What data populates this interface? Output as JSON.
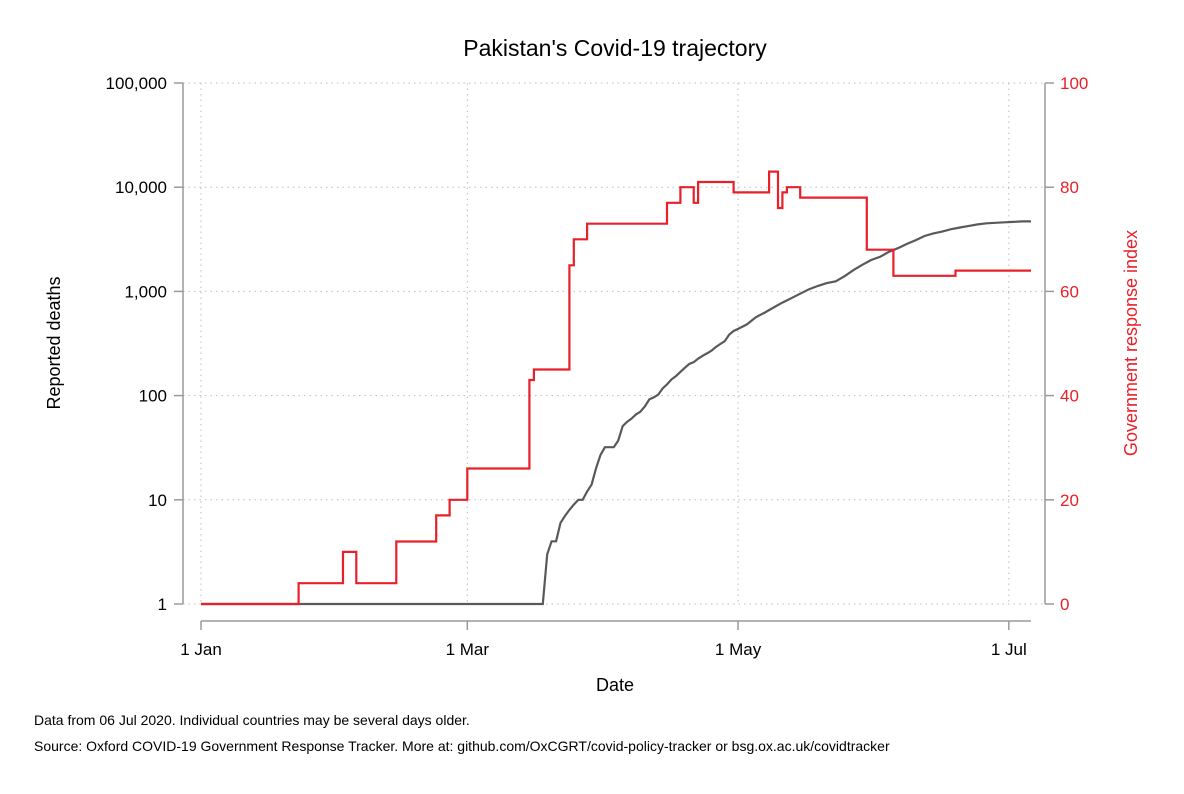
{
  "chart_data": {
    "type": "line",
    "title": "Pakistan's Covid-19 trajectory",
    "xlabel": "Date",
    "ylabel_left": "Reported deaths",
    "ylabel_right": "Government response index",
    "x_ticks": [
      "1 Jan",
      "1 Mar",
      "1 May",
      "1 Jul"
    ],
    "x_tick_dates": [
      "2020-01-01",
      "2020-03-01",
      "2020-05-01",
      "2020-07-01"
    ],
    "x_range": [
      "2020-01-01",
      "2020-07-06"
    ],
    "left_axis": {
      "scale": "log",
      "ylim": [
        1,
        100000
      ],
      "ticks": [
        1,
        10,
        100,
        1000,
        10000,
        100000
      ],
      "tick_labels": [
        "1",
        "10",
        "100",
        "1,000",
        "10,000",
        "100,000"
      ]
    },
    "right_axis": {
      "scale": "linear",
      "ylim": [
        0,
        100
      ],
      "ticks": [
        0,
        20,
        40,
        60,
        80,
        100
      ],
      "tick_labels": [
        "0",
        "20",
        "40",
        "60",
        "80",
        "100"
      ],
      "color": "#e8202a"
    },
    "grid": true,
    "series": [
      {
        "axis": "left",
        "color": "#595959",
        "x": [
          "2020-01-01",
          "2020-03-18",
          "2020-03-19",
          "2020-03-20",
          "2020-03-21",
          "2020-03-22",
          "2020-03-23",
          "2020-03-24",
          "2020-03-25",
          "2020-03-26",
          "2020-03-27",
          "2020-03-28",
          "2020-03-29",
          "2020-03-30",
          "2020-03-31",
          "2020-04-01",
          "2020-04-02",
          "2020-04-03",
          "2020-04-04",
          "2020-04-05",
          "2020-04-06",
          "2020-04-07",
          "2020-04-08",
          "2020-04-09",
          "2020-04-10",
          "2020-04-11",
          "2020-04-12",
          "2020-04-13",
          "2020-04-14",
          "2020-04-15",
          "2020-04-16",
          "2020-04-17",
          "2020-04-18",
          "2020-04-19",
          "2020-04-20",
          "2020-04-21",
          "2020-04-22",
          "2020-04-23",
          "2020-04-24",
          "2020-04-25",
          "2020-04-26",
          "2020-04-27",
          "2020-04-28",
          "2020-04-29",
          "2020-04-30",
          "2020-05-01",
          "2020-05-03",
          "2020-05-05",
          "2020-05-07",
          "2020-05-09",
          "2020-05-11",
          "2020-05-13",
          "2020-05-15",
          "2020-05-17",
          "2020-05-19",
          "2020-05-21",
          "2020-05-23",
          "2020-05-25",
          "2020-05-27",
          "2020-05-29",
          "2020-05-31",
          "2020-06-02",
          "2020-06-04",
          "2020-06-06",
          "2020-06-08",
          "2020-06-10",
          "2020-06-12",
          "2020-06-14",
          "2020-06-16",
          "2020-06-18",
          "2020-06-20",
          "2020-06-22",
          "2020-06-24",
          "2020-06-26",
          "2020-06-28",
          "2020-06-30",
          "2020-07-02",
          "2020-07-04",
          "2020-07-06"
        ],
        "y": [
          1,
          1,
          3,
          4,
          4,
          6,
          7,
          8,
          9,
          10,
          10,
          12,
          14,
          20,
          27,
          32,
          32,
          32,
          37,
          51,
          56,
          60,
          66,
          70,
          79,
          92,
          96,
          102,
          117,
          128,
          143,
          154,
          169,
          185,
          201,
          209,
          226,
          241,
          254,
          270,
          293,
          313,
          333,
          385,
          417,
          437,
          482,
          564,
          626,
          700,
          780,
          860,
          950,
          1050,
          1130,
          1200,
          1250,
          1400,
          1600,
          1800,
          2000,
          2150,
          2400,
          2600,
          2850,
          3100,
          3400,
          3600,
          3750,
          3950,
          4100,
          4250,
          4400,
          4500,
          4550,
          4600,
          4650,
          4700,
          4700
        ]
      },
      {
        "axis": "right",
        "color": "#e8202a",
        "x": [
          "2020-01-01",
          "2020-01-23",
          "2020-02-02",
          "2020-02-05",
          "2020-02-14",
          "2020-02-23",
          "2020-02-26",
          "2020-03-01",
          "2020-03-15",
          "2020-03-16",
          "2020-03-24",
          "2020-03-25",
          "2020-03-26",
          "2020-03-28",
          "2020-03-30",
          "2020-04-15",
          "2020-04-16",
          "2020-04-18",
          "2020-04-21",
          "2020-04-22",
          "2020-04-30",
          "2020-05-08",
          "2020-05-09",
          "2020-05-10",
          "2020-05-11",
          "2020-05-12",
          "2020-05-14",
          "2020-05-15",
          "2020-05-17",
          "2020-05-18",
          "2020-05-19",
          "2020-05-29",
          "2020-05-30",
          "2020-06-05",
          "2020-06-19",
          "2020-07-06"
        ],
        "y": [
          0,
          4,
          10,
          4,
          12,
          17,
          20,
          26,
          43,
          45,
          65,
          70,
          70,
          73,
          73,
          77,
          77,
          80,
          77,
          81,
          79,
          83,
          83,
          76,
          79,
          80,
          80,
          78,
          78,
          78,
          78,
          78,
          68,
          63,
          64,
          64
        ]
      }
    ],
    "notes": [
      "Data from 06 Jul 2020. Individual countries may be several days older.",
      "Source: Oxford COVID-19 Government Response Tracker. More at: github.com/OxCGRT/covid-policy-tracker or bsg.ox.ac.uk/covidtracker"
    ]
  }
}
